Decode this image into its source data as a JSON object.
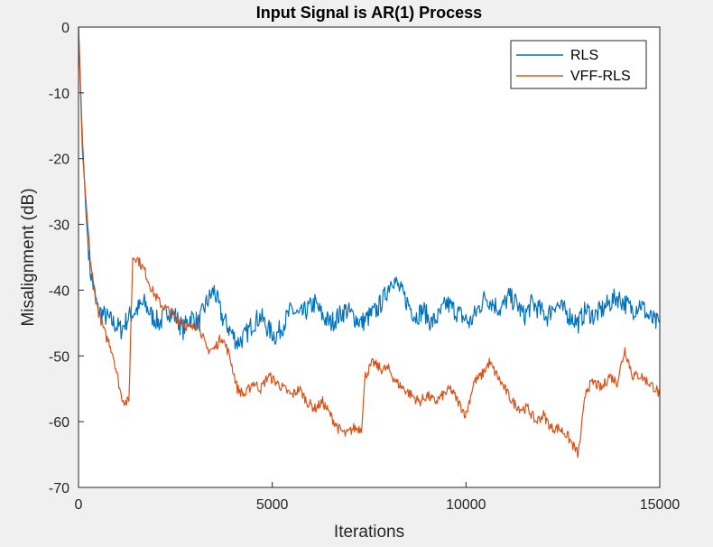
{
  "chart_data": {
    "type": "line",
    "title": "Input Signal is AR(1) Process",
    "xlabel": "Iterations",
    "ylabel": "Misalignment (dB)",
    "xlim": [
      0,
      15000
    ],
    "ylim": [
      -70,
      0
    ],
    "xticks": [
      0,
      5000,
      10000,
      15000
    ],
    "yticks": [
      0,
      -10,
      -20,
      -30,
      -40,
      -50,
      -60,
      -70
    ],
    "xtick_labels": [
      "0",
      "5000",
      "10000",
      "15000"
    ],
    "ytick_labels": [
      "0",
      "-10",
      "-20",
      "-30",
      "-40",
      "-50",
      "-60",
      "-70"
    ],
    "grid": false,
    "legend_position": "top-right",
    "series": [
      {
        "name": "RLS",
        "color": "#0072BD",
        "x": [
          0,
          100,
          200,
          300,
          400,
          500,
          700,
          900,
          1100,
          1300,
          1500,
          1700,
          1900,
          2100,
          2300,
          2500,
          2700,
          2900,
          3100,
          3300,
          3500,
          3700,
          3900,
          4100,
          4300,
          4500,
          4700,
          4900,
          5100,
          5300,
          5500,
          5700,
          5900,
          6100,
          6300,
          6500,
          6700,
          6900,
          7100,
          7300,
          7500,
          7700,
          7900,
          8100,
          8300,
          8500,
          8700,
          8900,
          9100,
          9300,
          9500,
          9700,
          9900,
          10100,
          10300,
          10500,
          10700,
          10900,
          11100,
          11300,
          11500,
          11700,
          11900,
          12100,
          12300,
          12500,
          12700,
          12900,
          13100,
          13300,
          13500,
          13700,
          13900,
          14100,
          14300,
          14500,
          14700,
          14900,
          15000
        ],
        "values": [
          0,
          -17,
          -29,
          -37,
          -40,
          -43,
          -44,
          -45,
          -46,
          -44,
          -43,
          -42,
          -44,
          -45,
          -43,
          -44,
          -46,
          -44,
          -45,
          -42,
          -40,
          -44,
          -46,
          -48,
          -47,
          -45,
          -44,
          -46,
          -47,
          -45,
          -43,
          -44,
          -43,
          -42,
          -44,
          -45,
          -44,
          -43,
          -44,
          -45,
          -44,
          -43,
          -41,
          -38,
          -40,
          -42,
          -44,
          -43,
          -45,
          -44,
          -42,
          -43,
          -44,
          -45,
          -43,
          -41,
          -42,
          -43,
          -41,
          -42,
          -44,
          -42,
          -43,
          -44,
          -42,
          -43,
          -44,
          -45,
          -43,
          -44,
          -43,
          -42,
          -41,
          -42,
          -43,
          -42,
          -44,
          -45,
          -45
        ]
      },
      {
        "name": "VFF-RLS",
        "color": "#D95319",
        "x": [
          0,
          100,
          200,
          300,
          400,
          500,
          600,
          700,
          800,
          900,
          1000,
          1100,
          1200,
          1300,
          1400,
          1500,
          1700,
          1900,
          2100,
          2300,
          2500,
          2700,
          2900,
          3100,
          3300,
          3500,
          3700,
          3900,
          4100,
          4300,
          4500,
          4700,
          4900,
          5100,
          5300,
          5500,
          5700,
          5900,
          6100,
          6300,
          6500,
          6700,
          6900,
          7100,
          7300,
          7400,
          7600,
          7800,
          8000,
          8200,
          8400,
          8600,
          8800,
          9000,
          9200,
          9400,
          9600,
          9800,
          10000,
          10200,
          10400,
          10600,
          10800,
          11000,
          11200,
          11400,
          11600,
          11800,
          12000,
          12200,
          12400,
          12600,
          12800,
          12900,
          13100,
          13300,
          13500,
          13700,
          13900,
          14100,
          14300,
          14500,
          14700,
          14900,
          15000
        ],
        "values": [
          0,
          -19,
          -27,
          -35,
          -40,
          -43,
          -45,
          -47,
          -48,
          -50,
          -53,
          -56,
          -57,
          -57,
          -35,
          -35,
          -37,
          -40,
          -42,
          -43,
          -44,
          -45,
          -46,
          -45,
          -49,
          -49,
          -47,
          -50,
          -55,
          -56,
          -54,
          -55,
          -53,
          -54,
          -55,
          -56,
          -55,
          -57,
          -58,
          -57,
          -59,
          -61,
          -62,
          -61,
          -61,
          -53,
          -51,
          -52,
          -52,
          -54,
          -55,
          -56,
          -57,
          -56,
          -57,
          -56,
          -55,
          -57,
          -59,
          -54,
          -53,
          -51,
          -53,
          -55,
          -57,
          -58,
          -58,
          -60,
          -59,
          -61,
          -61,
          -62,
          -64,
          -65,
          -55,
          -54,
          -55,
          -53,
          -54,
          -49,
          -53,
          -53,
          -54,
          -55,
          -56
        ]
      }
    ]
  }
}
